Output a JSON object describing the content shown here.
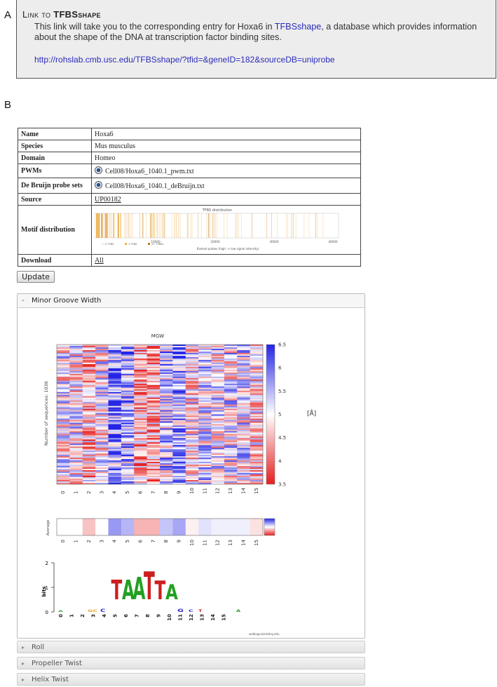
{
  "panel_a": {
    "label": "A",
    "title_prefix": "Link to ",
    "title_bold": "TFBSshape",
    "description_pre": "This link will take you to the corresponding entry for Hoxa6 in ",
    "description_link": "TFBSshape",
    "description_post": ", a database which provides information about the shape of the DNA at transcription factor binding sites.",
    "url": "http://rohslab.cmb.usc.edu/TFBSshape/?tfid=&geneID=182&sourceDB=uniprobe"
  },
  "panel_b": {
    "label": "B",
    "table": {
      "name_key": "Name",
      "name_val": "Hoxa6",
      "species_key": "Species",
      "species_val": "Mus musculus",
      "domain_key": "Domain",
      "domain_val": "Homeo",
      "pwms_key": "PWMs",
      "pwms_val": "Cell08/Hoxa6_1040.1_pwm.txt",
      "debruijn_key": "De Bruijn probe sets",
      "debruijn_val": "Cell08/Hoxa6_1040.1_deBruijn.txt",
      "source_key": "Source",
      "source_val": "UP00182",
      "motif_key": "Motif distribution",
      "download_key": "Download",
      "download_val": "All"
    },
    "tfbs_chart": {
      "title": "TFBS distribution",
      "ticks": [
        "10000",
        "20000",
        "30000",
        "40000"
      ],
      "xlabel": "Ranked probes (high -> low signal intensity)",
      "legend": [
        "0 TFBS",
        "1 TFBS",
        "2+ TFBSs"
      ],
      "colors": [
        "#ffffff",
        "#f2b54a",
        "#c9781a"
      ]
    },
    "update_label": "Update",
    "mgw": {
      "header": "Minor Groove Width",
      "title": "MGW",
      "ylabel": "Number of sequences: 1036",
      "unit": "[Å]",
      "average_label": "Average",
      "colorbar_ticks": [
        "6.5",
        "6",
        "5.5",
        "5",
        "4.5",
        "4",
        "3.5"
      ],
      "positions": [
        "0",
        "1",
        "2",
        "3",
        "4",
        "5",
        "6",
        "7",
        "8",
        "9",
        "10",
        "11",
        "12",
        "13",
        "14",
        "15"
      ],
      "average_values": [
        5.0,
        5.0,
        4.6,
        5.0,
        5.7,
        5.5,
        4.5,
        4.5,
        5.4,
        5.6,
        4.9,
        5.2,
        5.1,
        5.1,
        5.1,
        4.8
      ],
      "logo_ylabel": "bits",
      "logo_yticks": [
        "2",
        "1",
        "0"
      ],
      "logo_letters": [
        "T",
        "A",
        "A",
        "T",
        "T",
        "A"
      ],
      "logo_credit": "weblogo.berkeley.edu"
    },
    "sections": [
      "Roll",
      "Propeller Twist",
      "Helix Twist"
    ]
  }
}
